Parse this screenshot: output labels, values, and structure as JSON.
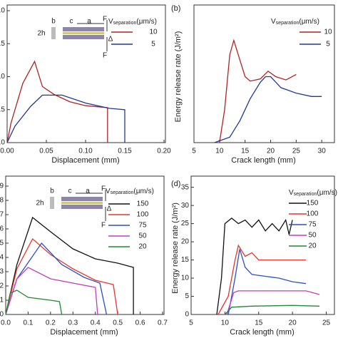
{
  "chart_data": [
    {
      "type": "line",
      "x_label": "Displacement (mm)",
      "xlim": [
        0,
        0.2
      ],
      "xticks": [
        {
          "value": 0,
          "label": "0.00"
        },
        0.05,
        {
          "value": 0.1,
          "label": "0.10"
        },
        0.15,
        {
          "value": 0.2,
          "label": "0.20"
        }
      ],
      "ylim": [
        0,
        2
      ],
      "yticks": [
        {
          "value": 0,
          "label": "0.0"
        },
        0.5,
        {
          "value": 1,
          "label": "1.0"
        },
        1.5,
        {
          "value": 2,
          "label": "2.0"
        }
      ],
      "legend_title": {
        "symbol": "V",
        "subscript": "separation",
        "unit": "(μm/s)"
      },
      "annotations": [
        "b",
        "c",
        "a",
        "F",
        "2h",
        "Δ",
        "F"
      ],
      "series": [
        {
          "name": "10",
          "color": "#b22222",
          "x": [
            0,
            0.005,
            0.02,
            0.035,
            0.045,
            0.06,
            0.08,
            0.1,
            0.128,
            0.128
          ],
          "values": [
            0,
            0.3,
            0.9,
            1.23,
            0.85,
            0.73,
            0.62,
            0.56,
            0.53,
            0
          ]
        },
        {
          "name": "5",
          "color": "#1f3a93",
          "x": [
            0,
            0.01,
            0.03,
            0.045,
            0.07,
            0.1,
            0.13,
            0.15,
            0.15
          ],
          "values": [
            0,
            0.25,
            0.55,
            0.72,
            0.72,
            0.6,
            0.52,
            0.5,
            0
          ]
        }
      ]
    },
    {
      "type": "line",
      "panel_label": "(b)",
      "x_label": "Crack length (mm)",
      "y_label": "Energy release rate (J/m²)",
      "xlim": [
        5,
        32.2
      ],
      "xticks": [
        5,
        10,
        15,
        20,
        25,
        30
      ],
      "ylim": [
        0,
        1.2
      ],
      "legend_title": {
        "symbol": "V",
        "subscript": "separation",
        "unit": "(μm/s)"
      },
      "series": [
        {
          "name": "10",
          "color": "#b22222",
          "x": [
            10,
            11,
            12,
            12.8,
            14,
            15,
            16,
            18,
            19.5,
            21,
            23,
            25
          ],
          "values": [
            0,
            0.3,
            0.8,
            0.93,
            0.75,
            0.6,
            0.56,
            0.58,
            0.65,
            0.6,
            0.57,
            0.62
          ]
        },
        {
          "name": "5",
          "color": "#1f3a93",
          "x": [
            9,
            12,
            14,
            16,
            18,
            19,
            20,
            22,
            25,
            28,
            30
          ],
          "values": [
            0,
            0.05,
            0.2,
            0.4,
            0.55,
            0.6,
            0.6,
            0.5,
            0.45,
            0.42,
            0.42
          ]
        }
      ]
    },
    {
      "type": "line",
      "x_label": "Displacement (mm)",
      "xlim": [
        0,
        0.7
      ],
      "xticks": [
        {
          "value": 0,
          "label": "0.0"
        },
        0.1,
        0.2,
        0.3,
        0.4,
        0.5,
        0.6,
        0.7
      ],
      "ylim": [
        0,
        9.3
      ],
      "yticks": [
        0,
        1,
        2,
        3,
        4,
        5,
        6,
        7,
        8,
        9
      ],
      "legend_title": {
        "symbol": "V",
        "subscript": "separation",
        "unit": "(μm/s)"
      },
      "annotations": [
        "b",
        "c",
        "a",
        "F",
        "2h",
        "Δ",
        "F"
      ],
      "series": [
        {
          "name": "150",
          "color": "#111111",
          "x": [
            0,
            0.05,
            0.12,
            0.2,
            0.3,
            0.4,
            0.5,
            0.57,
            0.57
          ],
          "values": [
            0,
            3.5,
            6.8,
            5.8,
            4.6,
            3.9,
            3.6,
            3.3,
            0
          ]
        },
        {
          "name": "100",
          "color": "#e8352b",
          "x": [
            0,
            0.05,
            0.12,
            0.2,
            0.3,
            0.4,
            0.48,
            0.5
          ],
          "values": [
            0,
            3.2,
            5.3,
            4.2,
            3.2,
            2.4,
            2.1,
            0
          ]
        },
        {
          "name": "75",
          "color": "#2b4fc4",
          "x": [
            0,
            0.05,
            0.16,
            0.25,
            0.35,
            0.42,
            0.45
          ],
          "values": [
            0,
            2.5,
            5,
            3.5,
            2.6,
            2.2,
            0
          ]
        },
        {
          "name": "50",
          "color": "#c23bc2",
          "x": [
            0,
            0.05,
            0.1,
            0.2,
            0.3,
            0.4,
            0.41
          ],
          "values": [
            0,
            2.5,
            3.3,
            2.5,
            2.2,
            1.9,
            0
          ]
        },
        {
          "name": "20",
          "color": "#1e8a2e",
          "x": [
            0,
            0.02,
            0.05,
            0.1,
            0.2,
            0.24,
            0.25
          ],
          "values": [
            0,
            1.5,
            1.7,
            1.2,
            1,
            0.9,
            0
          ]
        }
      ]
    },
    {
      "type": "line",
      "panel_label": "(d)",
      "x_label": "Crack length (mm)",
      "y_label": "Energy release rate (J/m²)",
      "xlim": [
        5,
        26
      ],
      "xticks": [
        5,
        10,
        15,
        20,
        25
      ],
      "ylim": [
        0,
        36.5
      ],
      "yticks": [
        0,
        5,
        10,
        15,
        20,
        25,
        30,
        35
      ],
      "legend_title": {
        "symbol": "V",
        "subscript": "separation",
        "unit": "(μm/s)"
      },
      "series": [
        {
          "name": "150",
          "color": "#111111",
          "x": [
            8.8,
            9.5,
            10,
            11,
            12,
            13,
            14,
            15,
            16,
            17,
            18,
            19,
            19.5,
            20
          ],
          "values": [
            0,
            10,
            25,
            26.5,
            25,
            26,
            24,
            26,
            23,
            25,
            23,
            26,
            22,
            26
          ]
        },
        {
          "name": "100",
          "color": "#e8352b",
          "x": [
            9,
            10.5,
            11.5,
            12,
            13,
            14,
            15,
            17,
            19,
            22
          ],
          "values": [
            0,
            5,
            15,
            19,
            16,
            17,
            15,
            15,
            15,
            15
          ]
        },
        {
          "name": "75",
          "color": "#2b4fc4",
          "x": [
            10.5,
            11.5,
            12.2,
            13,
            14,
            16,
            18,
            20,
            22
          ],
          "values": [
            0,
            10,
            18,
            13,
            11,
            10.5,
            10,
            9,
            8.5
          ]
        },
        {
          "name": "50",
          "color": "#c23bc2",
          "x": [
            10.3,
            11.3,
            12,
            15,
            19,
            22,
            24
          ],
          "values": [
            0,
            6,
            6.5,
            6.5,
            6.5,
            6.5,
            5.5
          ]
        },
        {
          "name": "20",
          "color": "#1e8a2e",
          "x": [
            10,
            11,
            14,
            20,
            24
          ],
          "values": [
            0,
            2,
            2.3,
            2.5,
            2.3
          ]
        }
      ]
    }
  ]
}
